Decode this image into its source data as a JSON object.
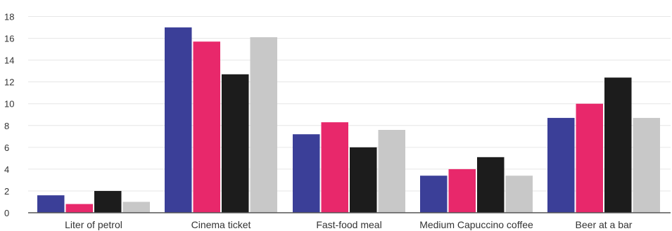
{
  "chart_data": {
    "type": "bar",
    "categories": [
      "Liter of petrol",
      "Cinema ticket",
      "Fast-food meal",
      "Medium Capuccino coffee",
      "Beer at a bar"
    ],
    "series": [
      {
        "values": [
          1.6,
          17.0,
          7.2,
          3.4,
          8.7
        ],
        "color": "#3b3f98"
      },
      {
        "values": [
          0.8,
          15.7,
          8.3,
          4.0,
          10.0
        ],
        "color": "#e8286b"
      },
      {
        "values": [
          2.0,
          12.7,
          6.0,
          5.1,
          12.4
        ],
        "color": "#1c1c1c"
      },
      {
        "values": [
          1.0,
          16.1,
          7.6,
          3.4,
          8.7
        ],
        "color": "#c8c8c8"
      }
    ],
    "yticks": [
      0,
      2,
      4,
      6,
      8,
      10,
      12,
      14,
      16,
      18
    ],
    "ylim": [
      0,
      19
    ],
    "grid": true,
    "title": "",
    "xlabel": "",
    "ylabel": ""
  }
}
